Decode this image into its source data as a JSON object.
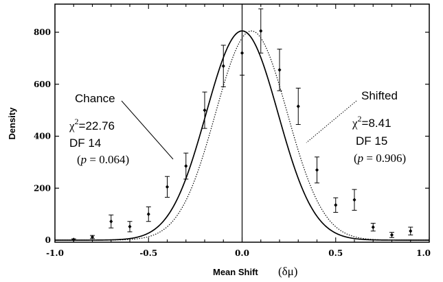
{
  "chart_data": {
    "type": "line",
    "xlabel": "Mean Shift",
    "xlabel_symbol": "(δμ)",
    "ylabel": "Density",
    "xlim": [
      -1.0,
      1.0
    ],
    "ylim": [
      0,
      900
    ],
    "x_ticks": [
      "-1.0",
      "-0.5",
      "0.0",
      "0.5",
      "1.0"
    ],
    "y_ticks": [
      "0",
      "200",
      "400",
      "600",
      "800"
    ],
    "x_tick_values": [
      -1.0,
      -0.5,
      0.0,
      0.5,
      1.0
    ],
    "y_tick_values": [
      0,
      200,
      400,
      600,
      800
    ],
    "grid": false,
    "series": [
      {
        "name": "Chance",
        "style": "solid",
        "curve": "gaussian",
        "mean": 0.0,
        "peak": 805,
        "sd": 0.192
      },
      {
        "name": "Shifted",
        "style": "dotted",
        "curve": "gaussian",
        "mean": 0.05,
        "peak": 805,
        "sd": 0.192
      }
    ],
    "points": {
      "x": [
        -0.9,
        -0.8,
        -0.7,
        -0.6,
        -0.5,
        -0.4,
        -0.3,
        -0.2,
        -0.1,
        0.0,
        0.1,
        0.2,
        0.3,
        0.4,
        0.5,
        0.6,
        0.7,
        0.8,
        0.9
      ],
      "y": [
        2,
        12,
        72,
        52,
        100,
        205,
        285,
        500,
        670,
        720,
        805,
        655,
        515,
        270,
        135,
        155,
        50,
        20,
        35
      ],
      "err": [
        3,
        6,
        25,
        20,
        28,
        40,
        50,
        70,
        80,
        85,
        85,
        80,
        70,
        50,
        28,
        40,
        15,
        10,
        15
      ]
    },
    "vline_x": 0.0,
    "annotations": {
      "chance": {
        "name": "Chance",
        "chi2_label": "χ",
        "chi2_value": "=22.76",
        "df": "DF 14",
        "p_open": "(",
        "p_var": "p",
        "p_value": " = 0.064)"
      },
      "shifted": {
        "name": "Shifted",
        "chi2_label": "χ",
        "chi2_value": "=8.41",
        "df": "DF 15",
        "p_open": "(",
        "p_var": "p",
        "p_value": " = 0.906)"
      },
      "superscript": "2"
    }
  }
}
